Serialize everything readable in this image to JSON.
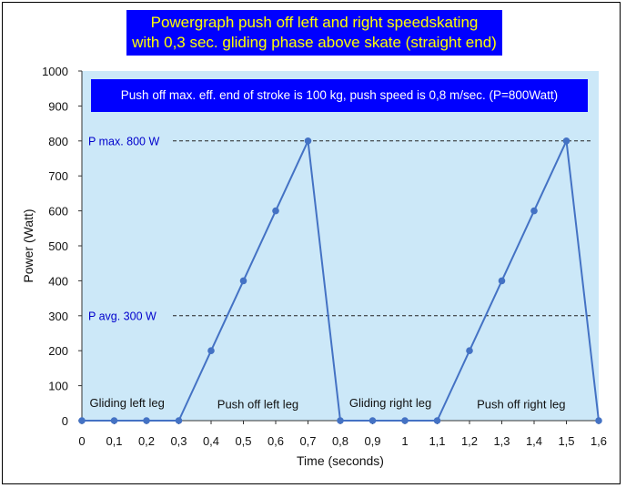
{
  "chart_data": {
    "type": "line",
    "title": [
      "Powergraph push off left and right speedskating",
      "with 0,3 sec. gliding phase above skate (straight end)"
    ],
    "subtitle": "Push off max. eff. end of stroke is 100 kg, push speed is 0,8 m/sec. (P=800Watt)",
    "xlabel": "Time (seconds)",
    "ylabel": "Power (Watt)",
    "xlim": [
      0,
      1.6
    ],
    "ylim": [
      0,
      1000
    ],
    "x_ticks": [
      0,
      0.1,
      0.2,
      0.3,
      0.4,
      0.5,
      0.6,
      0.7,
      0.8,
      0.9,
      1.0,
      1.1,
      1.2,
      1.3,
      1.4,
      1.5,
      1.6
    ],
    "x_tick_labels": [
      "0",
      "0,1",
      "0,2",
      "0,3",
      "0,4",
      "0,5",
      "0,6",
      "0,7",
      "0,8",
      "0,9",
      "1",
      "1,1",
      "1,2",
      "1,3",
      "1,4",
      "1,5",
      "1,6"
    ],
    "y_ticks": [
      0,
      100,
      200,
      300,
      400,
      500,
      600,
      700,
      800,
      900,
      1000
    ],
    "series": [
      {
        "name": "Power",
        "color": "#4472c4",
        "x": [
          0,
          0.1,
          0.2,
          0.3,
          0.4,
          0.5,
          0.6,
          0.7,
          0.8,
          0.9,
          1.0,
          1.1,
          1.2,
          1.3,
          1.4,
          1.5,
          1.6
        ],
        "y": [
          0,
          0,
          0,
          0,
          200,
          400,
          600,
          800,
          0,
          0,
          0,
          0,
          200,
          400,
          600,
          800,
          0
        ]
      }
    ],
    "reference_lines": [
      {
        "label": "P max. 800 W",
        "y": 800,
        "color": "#0000cc"
      },
      {
        "label": "P avg. 300 W",
        "y": 300,
        "color": "#0000cc"
      }
    ],
    "annotations": [
      {
        "text": "Gliding left leg",
        "x": 0.14,
        "y": 50
      },
      {
        "text": "Push off left leg",
        "x": 0.545,
        "y": 45
      },
      {
        "text": "Gliding right leg",
        "x": 0.955,
        "y": 50
      },
      {
        "text": "Push off right leg",
        "x": 1.36,
        "y": 45
      }
    ],
    "plot_background": "#cce8f8",
    "grid": false
  }
}
